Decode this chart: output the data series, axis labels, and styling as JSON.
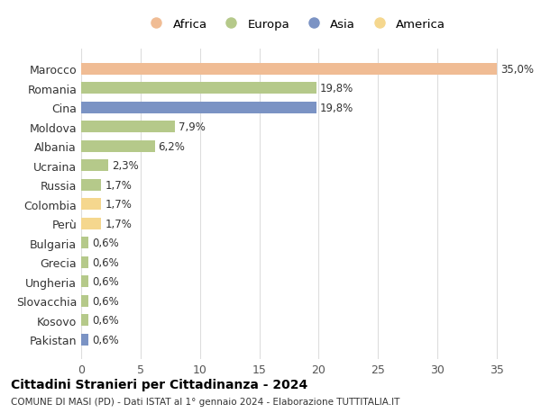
{
  "countries": [
    "Marocco",
    "Romania",
    "Cina",
    "Moldova",
    "Albania",
    "Ucraina",
    "Russia",
    "Colombia",
    "Perù",
    "Bulgaria",
    "Grecia",
    "Ungheria",
    "Slovacchia",
    "Kosovo",
    "Pakistan"
  ],
  "values": [
    35.0,
    19.8,
    19.8,
    7.9,
    6.2,
    2.3,
    1.7,
    1.7,
    1.7,
    0.6,
    0.6,
    0.6,
    0.6,
    0.6,
    0.6
  ],
  "labels": [
    "35,0%",
    "19,8%",
    "19,8%",
    "7,9%",
    "6,2%",
    "2,3%",
    "1,7%",
    "1,7%",
    "1,7%",
    "0,6%",
    "0,6%",
    "0,6%",
    "0,6%",
    "0,6%",
    "0,6%"
  ],
  "colors": [
    "#f0bc94",
    "#b5c98a",
    "#7b93c4",
    "#b5c98a",
    "#b5c98a",
    "#b5c98a",
    "#b5c98a",
    "#f5d78e",
    "#f5d78e",
    "#b5c98a",
    "#b5c98a",
    "#b5c98a",
    "#b5c98a",
    "#b5c98a",
    "#7b93c4"
  ],
  "continent_colors": {
    "Africa": "#f0bc94",
    "Europa": "#b5c98a",
    "Asia": "#7b93c4",
    "America": "#f5d78e"
  },
  "legend_order": [
    "Africa",
    "Europa",
    "Asia",
    "America"
  ],
  "xlim": [
    0,
    36
  ],
  "xticks": [
    0,
    5,
    10,
    15,
    20,
    25,
    30,
    35
  ],
  "title": "Cittadini Stranieri per Cittadinanza - 2024",
  "subtitle": "COMUNE DI MASI (PD) - Dati ISTAT al 1° gennaio 2024 - Elaborazione TUTTITALIA.IT",
  "background_color": "#ffffff",
  "grid_color": "#dddddd",
  "bar_height": 0.6
}
